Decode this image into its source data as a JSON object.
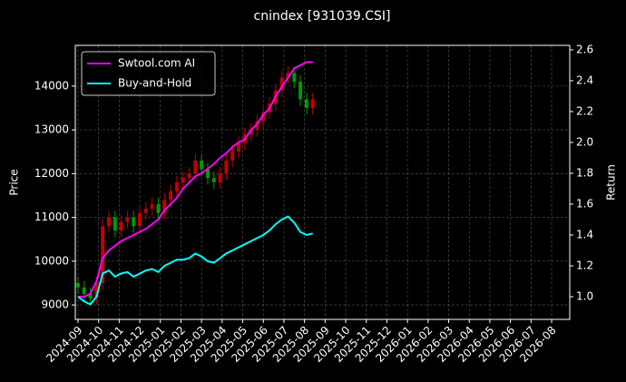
{
  "chart_data": {
    "type": "candlestick",
    "title": "cnindex [931039.CSI]",
    "ylabel": "Price",
    "y2label": "Return",
    "x": [
      0,
      0.3,
      0.6,
      0.9,
      1.2,
      1.5,
      1.8,
      2.1,
      2.4,
      2.7,
      3.0,
      3.3,
      3.6,
      3.9,
      4.2,
      4.5,
      4.8,
      5.1,
      5.4,
      5.7,
      6.0,
      6.3,
      6.6,
      6.9,
      7.2,
      7.5,
      7.8,
      8.1,
      8.4,
      8.7,
      9.0,
      9.3,
      9.6,
      9.9,
      10.2,
      10.5,
      10.8,
      11.1,
      11.4
    ],
    "open": [
      9500,
      9400,
      9250,
      9150,
      9500,
      10800,
      11000,
      10700,
      10900,
      11000,
      10800,
      11100,
      11200,
      11300,
      11100,
      11400,
      11600,
      11800,
      11900,
      12000,
      12300,
      12100,
      11900,
      11800,
      12000,
      12300,
      12500,
      12700,
      12900,
      13000,
      13200,
      13400,
      13600,
      13900,
      14200,
      14300,
      14100,
      13700,
      13500
    ],
    "high": [
      9650,
      9550,
      9400,
      9650,
      10950,
      11150,
      11150,
      11050,
      11150,
      11150,
      11250,
      11350,
      11450,
      11450,
      11550,
      11750,
      11950,
      12050,
      12150,
      12450,
      12450,
      12250,
      12050,
      12150,
      12450,
      12650,
      12850,
      13050,
      13150,
      13350,
      13550,
      13750,
      14050,
      14350,
      14450,
      14450,
      14250,
      13850,
      13850
    ],
    "low": [
      9250,
      9100,
      9000,
      9000,
      9350,
      10650,
      10550,
      10550,
      10750,
      10650,
      10650,
      10950,
      11050,
      10950,
      10950,
      11250,
      11450,
      11650,
      11750,
      11850,
      11950,
      11750,
      11650,
      11650,
      11850,
      12150,
      12350,
      12550,
      12750,
      12850,
      13050,
      13250,
      13450,
      13750,
      14050,
      13950,
      13550,
      13350,
      13350
    ],
    "close": [
      9400,
      9250,
      9150,
      9500,
      10800,
      11000,
      10700,
      10900,
      11000,
      10800,
      11100,
      11200,
      11300,
      11100,
      11400,
      11600,
      11800,
      11900,
      12000,
      12300,
      12100,
      11900,
      11800,
      12000,
      12300,
      12500,
      12700,
      12900,
      13000,
      13200,
      13400,
      13600,
      13900,
      14200,
      14300,
      14100,
      13700,
      13500,
      13700
    ],
    "up_color": "#c40000",
    "down_color": "#009a00",
    "series": [
      {
        "name": "Swtool.com AI",
        "color": "#ff00ff",
        "axis": "y2",
        "values": [
          1.0,
          1.0,
          1.02,
          1.1,
          1.25,
          1.3,
          1.33,
          1.36,
          1.38,
          1.4,
          1.42,
          1.44,
          1.47,
          1.5,
          1.56,
          1.6,
          1.64,
          1.7,
          1.74,
          1.78,
          1.8,
          1.83,
          1.86,
          1.9,
          1.93,
          1.97,
          2.0,
          2.02,
          2.08,
          2.12,
          2.18,
          2.22,
          2.3,
          2.36,
          2.42,
          2.48,
          2.5,
          2.52,
          2.52
        ]
      },
      {
        "name": "Buy-and-Hold",
        "color": "#00ffff",
        "axis": "y2",
        "values": [
          1.0,
          0.97,
          0.95,
          1.0,
          1.15,
          1.17,
          1.13,
          1.15,
          1.16,
          1.13,
          1.15,
          1.17,
          1.18,
          1.16,
          1.2,
          1.22,
          1.24,
          1.24,
          1.25,
          1.28,
          1.26,
          1.23,
          1.22,
          1.25,
          1.28,
          1.3,
          1.32,
          1.34,
          1.36,
          1.38,
          1.4,
          1.43,
          1.47,
          1.5,
          1.52,
          1.48,
          1.42,
          1.4,
          1.41
        ]
      }
    ],
    "xlim": [
      -0.13,
      23.88
    ],
    "xticks": [
      {
        "value": 0,
        "label": "2024-09"
      },
      {
        "value": 1,
        "label": "2024-10"
      },
      {
        "value": 2,
        "label": "2024-11"
      },
      {
        "value": 3,
        "label": "2024-12"
      },
      {
        "value": 4,
        "label": "2025-01"
      },
      {
        "value": 5,
        "label": "2025-02"
      },
      {
        "value": 6,
        "label": "2025-03"
      },
      {
        "value": 7,
        "label": "2025-04"
      },
      {
        "value": 8,
        "label": "2025-05"
      },
      {
        "value": 9,
        "label": "2025-06"
      },
      {
        "value": 10,
        "label": "2025-07"
      },
      {
        "value": 11,
        "label": "2025-08"
      },
      {
        "value": 12,
        "label": "2025-09"
      },
      {
        "value": 13,
        "label": "2025-10"
      },
      {
        "value": 14,
        "label": "2025-11"
      },
      {
        "value": 15,
        "label": "2025-12"
      },
      {
        "value": 16,
        "label": "2026-01"
      },
      {
        "value": 17,
        "label": "2026-02"
      },
      {
        "value": 18,
        "label": "2026-03"
      },
      {
        "value": 19,
        "label": "2026-04"
      },
      {
        "value": 20,
        "label": "2026-05"
      },
      {
        "value": 21,
        "label": "2026-06"
      },
      {
        "value": 22,
        "label": "2026-07"
      },
      {
        "value": 23,
        "label": "2026-08"
      }
    ],
    "ylim": [
      8670,
      14930
    ],
    "yticks": [
      9000,
      10000,
      11000,
      12000,
      13000,
      14000
    ],
    "y2lim": [
      0.853,
      2.629
    ],
    "y2ticks": [
      {
        "value": 1,
        "label": "1.0"
      },
      1.2,
      1.4,
      1.6,
      1.8,
      {
        "value": 2,
        "label": "2.0"
      },
      2.2,
      2.4,
      2.6
    ],
    "grid": true,
    "legend": "upper left"
  }
}
